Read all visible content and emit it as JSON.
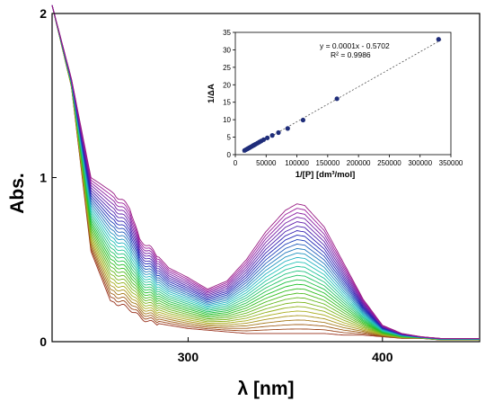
{
  "chart_data": [
    {
      "type": "line",
      "title": "",
      "xlabel": "λ [nm]",
      "ylabel": "Abs.",
      "xlim": [
        230,
        450
      ],
      "ylim": [
        0,
        2
      ],
      "x_ticks": [
        300,
        400
      ],
      "y_ticks": [
        0,
        1,
        2
      ],
      "grid": false,
      "legend": "none",
      "n_series": 30,
      "x": [
        230,
        240,
        250,
        260,
        270,
        275,
        280,
        290,
        300,
        310,
        320,
        330,
        340,
        350,
        356,
        360,
        370,
        380,
        390,
        400,
        410,
        420,
        430,
        440,
        450
      ],
      "series_first": {
        "values": [
          2.05,
          1.55,
          0.55,
          0.25,
          0.2,
          0.15,
          0.12,
          0.1,
          0.08,
          0.07,
          0.06,
          0.05,
          0.05,
          0.05,
          0.05,
          0.05,
          0.05,
          0.04,
          0.04,
          0.03,
          0.02,
          0.02,
          0.01,
          0.01,
          0.01
        ]
      },
      "series_last": {
        "values": [
          2.05,
          1.6,
          1.0,
          0.92,
          0.82,
          0.62,
          0.58,
          0.45,
          0.39,
          0.32,
          0.37,
          0.5,
          0.67,
          0.8,
          0.84,
          0.83,
          0.7,
          0.48,
          0.26,
          0.1,
          0.05,
          0.03,
          0.02,
          0.02,
          0.02
        ]
      }
    },
    {
      "type": "scatter",
      "title": "",
      "xlabel": "1/[P] [dm³/mol]",
      "ylabel": "1/ΔA",
      "xlim": [
        0,
        350000
      ],
      "ylim": [
        0,
        35
      ],
      "x_ticks": [
        0,
        50000,
        100000,
        150000,
        200000,
        250000,
        300000,
        350000
      ],
      "y_ticks": [
        0,
        5,
        10,
        15,
        20,
        25,
        30,
        35
      ],
      "points": [
        {
          "x": 15000,
          "y": 1.2
        },
        {
          "x": 17000,
          "y": 1.4
        },
        {
          "x": 19000,
          "y": 1.6
        },
        {
          "x": 21000,
          "y": 1.8
        },
        {
          "x": 23000,
          "y": 2.0
        },
        {
          "x": 25000,
          "y": 2.2
        },
        {
          "x": 27000,
          "y": 2.4
        },
        {
          "x": 29000,
          "y": 2.6
        },
        {
          "x": 31000,
          "y": 2.8
        },
        {
          "x": 33000,
          "y": 3.0
        },
        {
          "x": 36000,
          "y": 3.3
        },
        {
          "x": 39000,
          "y": 3.6
        },
        {
          "x": 42000,
          "y": 3.9
        },
        {
          "x": 46000,
          "y": 4.3
        },
        {
          "x": 52000,
          "y": 4.8
        },
        {
          "x": 60000,
          "y": 5.5
        },
        {
          "x": 70000,
          "y": 6.3
        },
        {
          "x": 85000,
          "y": 7.5
        },
        {
          "x": 110000,
          "y": 9.9
        },
        {
          "x": 165000,
          "y": 16.0
        },
        {
          "x": 330000,
          "y": 33.0
        }
      ],
      "trendline": {
        "slope": 0.0001,
        "intercept": -0.5702
      },
      "annotation": {
        "equation": "y = 0.0001x - 0.5702",
        "r2": "R² = 0.9986"
      }
    }
  ]
}
